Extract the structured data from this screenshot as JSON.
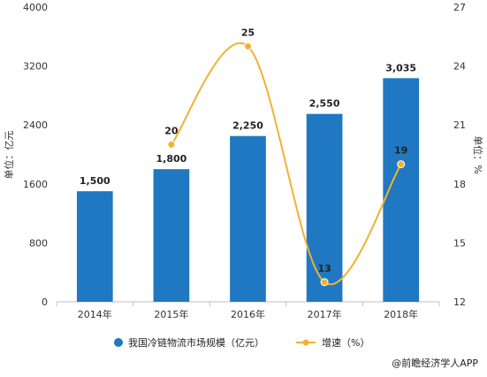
{
  "chart_data": {
    "type": "bar",
    "categories": [
      "2014年",
      "2015年",
      "2016年",
      "2017年",
      "2018年"
    ],
    "series": [
      {
        "name": "我国冷链物流市场规模（亿元）",
        "type": "bar",
        "axis": "left",
        "values": [
          1500,
          1800,
          2250,
          2550,
          3035
        ],
        "labels": [
          "1,500",
          "1,800",
          "2,250",
          "2,550",
          "3,035"
        ],
        "color": "#1f78c1"
      },
      {
        "name": "增速（%）",
        "type": "line",
        "axis": "right",
        "values": [
          null,
          20,
          25,
          13,
          19
        ],
        "labels": [
          "",
          "20",
          "25",
          "13",
          "19"
        ],
        "color": "#f2b231"
      }
    ],
    "y_left": {
      "label": "单位：亿元",
      "ylim": [
        0,
        4000
      ],
      "ticks": [
        "0",
        "800",
        "1600",
        "2400",
        "3200",
        "4000"
      ],
      "tick_values": [
        0,
        800,
        1600,
        2400,
        3200,
        4000
      ]
    },
    "y_right": {
      "label": "单位：%",
      "ylim": [
        12,
        27
      ],
      "ticks": [
        "12",
        "15",
        "18",
        "21",
        "24",
        "27"
      ],
      "tick_values": [
        12,
        15,
        18,
        21,
        24,
        27
      ]
    },
    "legend_position": "bottom",
    "grid": false
  },
  "credit": "@前瞻经济学人APP"
}
